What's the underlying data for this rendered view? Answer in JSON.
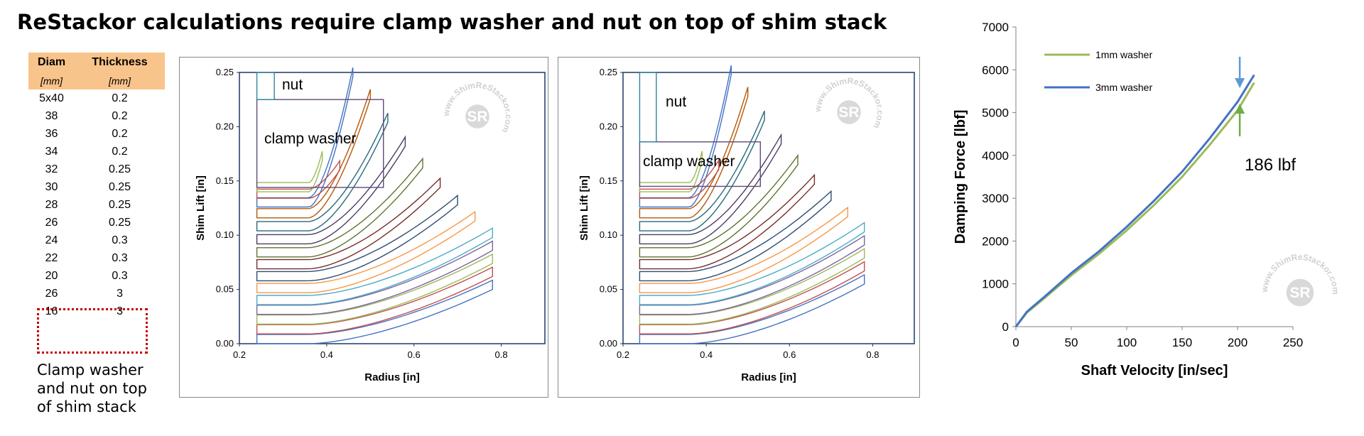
{
  "title": "ReStackor calculations require clamp washer and nut on top of shim stack",
  "table": {
    "headers": [
      "Diam",
      "Thickness"
    ],
    "units": [
      "[mm]",
      "[mm]"
    ],
    "rows": [
      [
        "5x40",
        "0.2"
      ],
      [
        "38",
        "0.2"
      ],
      [
        "36",
        "0.2"
      ],
      [
        "34",
        "0.2"
      ],
      [
        "32",
        "0.25"
      ],
      [
        "30",
        "0.25"
      ],
      [
        "28",
        "0.25"
      ],
      [
        "26",
        "0.25"
      ],
      [
        "24",
        "0.3"
      ],
      [
        "22",
        "0.3"
      ],
      [
        "20",
        "0.3"
      ],
      [
        "26",
        "3"
      ],
      [
        "16",
        "3"
      ]
    ],
    "highlight_color": "#f8c48b"
  },
  "clamp_note": [
    "Clamp washer",
    "and nut on top",
    "of shim stack"
  ],
  "watermark": "www.ShimReStackor.com",
  "chart_data": [
    {
      "type": "line",
      "panel": "left",
      "xlabel": "Radius [in]",
      "ylabel": "Shim Lift [in]",
      "xlim": [
        0.2,
        0.9
      ],
      "ylim": [
        0,
        0.25
      ],
      "xticks": [
        "0.2",
        "0.4",
        "0.6",
        "0.8"
      ],
      "yticks": [
        "0.00",
        "0.05",
        "0.10",
        "0.15",
        "0.20",
        "0.25"
      ],
      "annotations": [
        "nut",
        "clamp washer"
      ],
      "clamp_washer": {
        "x": [
          0.24,
          0.53
        ],
        "y": [
          0.144,
          0.225
        ]
      },
      "nut": {
        "x": [
          0.24,
          0.28
        ],
        "y": [
          0.225,
          0.25
        ]
      },
      "shims": [
        {
          "outer_radius": 0.78,
          "base": 0.0,
          "lift": 0.05,
          "color": "#4472c4"
        },
        {
          "outer_radius": 0.78,
          "base": 0.009,
          "lift": 0.053,
          "color": "#c0504d"
        },
        {
          "outer_radius": 0.78,
          "base": 0.018,
          "lift": 0.056,
          "color": "#9bbb59"
        },
        {
          "outer_radius": 0.78,
          "base": 0.027,
          "lift": 0.059,
          "color": "#8064a2"
        },
        {
          "outer_radius": 0.78,
          "base": 0.036,
          "lift": 0.062,
          "color": "#4bacc6"
        },
        {
          "outer_radius": 0.74,
          "base": 0.047,
          "lift": 0.066,
          "color": "#f79646"
        },
        {
          "outer_radius": 0.7,
          "base": 0.058,
          "lift": 0.07,
          "color": "#2c4d75"
        },
        {
          "outer_radius": 0.66,
          "base": 0.069,
          "lift": 0.075,
          "color": "#772c2a"
        },
        {
          "outer_radius": 0.62,
          "base": 0.08,
          "lift": 0.082,
          "color": "#5f7530"
        },
        {
          "outer_radius": 0.58,
          "base": 0.092,
          "lift": 0.09,
          "color": "#4d3b62"
        },
        {
          "outer_radius": 0.54,
          "base": 0.104,
          "lift": 0.1,
          "color": "#276a7c"
        },
        {
          "outer_radius": 0.5,
          "base": 0.116,
          "lift": 0.11,
          "color": "#b65708"
        },
        {
          "outer_radius": 0.46,
          "base": 0.126,
          "lift": 0.12,
          "color": "#4472c4"
        },
        {
          "outer_radius": 0.43,
          "base": 0.134,
          "lift": 0.13,
          "color": "#c0504d"
        },
        {
          "outer_radius": 0.39,
          "base": 0.14,
          "lift": 0.144,
          "color": "#9bbb59"
        }
      ]
    },
    {
      "type": "line",
      "panel": "middle",
      "xlabel": "Radius [in]",
      "ylabel": "Shim Lift [in]",
      "xlim": [
        0.2,
        0.9
      ],
      "ylim": [
        0,
        0.25
      ],
      "xticks": [
        "0.2",
        "0.4",
        "0.6",
        "0.8"
      ],
      "yticks": [
        "0.00",
        "0.05",
        "0.10",
        "0.15",
        "0.20",
        "0.25"
      ],
      "annotations": [
        "nut",
        "clamp washer"
      ],
      "clamp_washer": {
        "x": [
          0.24,
          0.53
        ],
        "y": [
          0.145,
          0.186
        ]
      },
      "nut": {
        "x": [
          0.24,
          0.28
        ],
        "y": [
          0.186,
          0.25
        ]
      },
      "shims": [
        {
          "outer_radius": 0.78,
          "base": 0.0,
          "lift": 0.055,
          "color": "#4472c4"
        },
        {
          "outer_radius": 0.78,
          "base": 0.009,
          "lift": 0.058,
          "color": "#c0504d"
        },
        {
          "outer_radius": 0.78,
          "base": 0.018,
          "lift": 0.061,
          "color": "#9bbb59"
        },
        {
          "outer_radius": 0.78,
          "base": 0.027,
          "lift": 0.064,
          "color": "#8064a2"
        },
        {
          "outer_radius": 0.78,
          "base": 0.036,
          "lift": 0.067,
          "color": "#4bacc6"
        },
        {
          "outer_radius": 0.74,
          "base": 0.047,
          "lift": 0.07,
          "color": "#f79646"
        },
        {
          "outer_radius": 0.7,
          "base": 0.058,
          "lift": 0.074,
          "color": "#2c4d75"
        },
        {
          "outer_radius": 0.66,
          "base": 0.069,
          "lift": 0.078,
          "color": "#772c2a"
        },
        {
          "outer_radius": 0.62,
          "base": 0.08,
          "lift": 0.085,
          "color": "#5f7530"
        },
        {
          "outer_radius": 0.58,
          "base": 0.092,
          "lift": 0.092,
          "color": "#4d3b62"
        },
        {
          "outer_radius": 0.54,
          "base": 0.104,
          "lift": 0.102,
          "color": "#276a7c"
        },
        {
          "outer_radius": 0.5,
          "base": 0.116,
          "lift": 0.112,
          "color": "#b65708"
        },
        {
          "outer_radius": 0.46,
          "base": 0.126,
          "lift": 0.122,
          "color": "#4472c4"
        },
        {
          "outer_radius": 0.43,
          "base": 0.134,
          "lift": 0.132,
          "color": "#c0504d"
        },
        {
          "outer_radius": 0.39,
          "base": 0.14,
          "lift": 0.145,
          "color": "#9bbb59"
        }
      ]
    },
    {
      "type": "line",
      "panel": "right",
      "xlabel": "Shaft Velocity [in/sec]",
      "ylabel": "Damping Force [lbf]",
      "xlim": [
        0,
        250
      ],
      "ylim": [
        0,
        7000
      ],
      "xticks": [
        0,
        50,
        100,
        150,
        200,
        250
      ],
      "yticks": [
        0,
        1000,
        2000,
        3000,
        4000,
        5000,
        6000,
        7000
      ],
      "legend_position": "top-left",
      "grid": false,
      "annotation": "186 lbf",
      "series": [
        {
          "name": "1mm washer",
          "color": "#9bbb59",
          "x": [
            0,
            10,
            25,
            50,
            75,
            100,
            125,
            150,
            175,
            200,
            215
          ],
          "y": [
            0,
            330,
            650,
            1200,
            1700,
            2250,
            2850,
            3500,
            4250,
            5050,
            5700
          ]
        },
        {
          "name": "3mm washer",
          "color": "#4472c4",
          "x": [
            0,
            10,
            25,
            50,
            75,
            100,
            125,
            150,
            175,
            200,
            215
          ],
          "y": [
            0,
            350,
            680,
            1250,
            1760,
            2330,
            2950,
            3620,
            4400,
            5250,
            5880
          ]
        }
      ]
    }
  ]
}
